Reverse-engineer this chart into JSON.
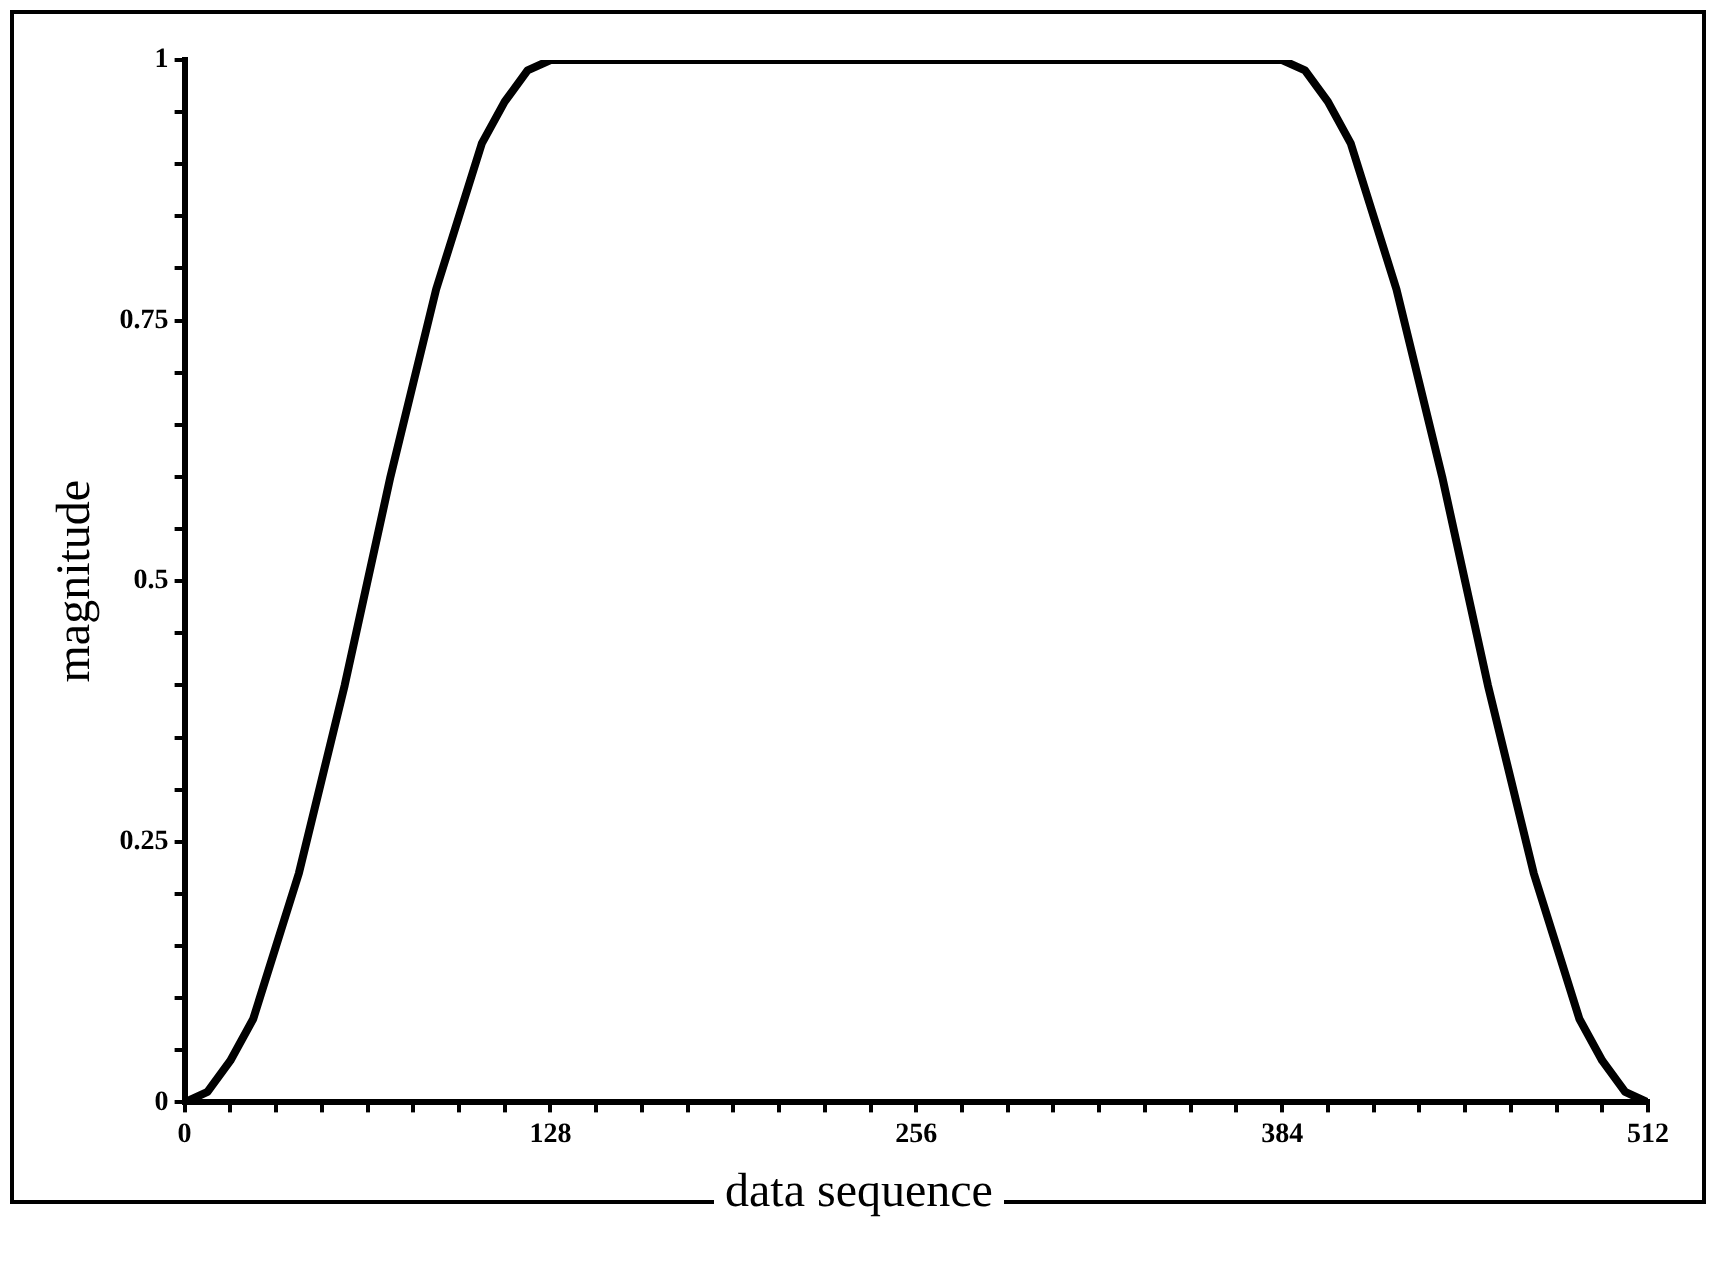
{
  "chart_data": {
    "type": "line",
    "xlabel": "data sequence",
    "ylabel": "magnitude",
    "color": "#000000",
    "x": [
      0,
      8,
      16,
      24,
      32,
      40,
      48,
      56,
      64,
      72,
      80,
      88,
      96,
      104,
      112,
      120,
      128,
      256,
      384,
      392,
      400,
      408,
      416,
      424,
      432,
      440,
      448,
      456,
      464,
      472,
      480,
      488,
      496,
      504,
      512
    ],
    "values": [
      0,
      0.01,
      0.04,
      0.08,
      0.15,
      0.22,
      0.31,
      0.4,
      0.5,
      0.6,
      0.69,
      0.78,
      0.85,
      0.92,
      0.96,
      0.99,
      1,
      1,
      1,
      0.99,
      0.96,
      0.92,
      0.85,
      0.78,
      0.69,
      0.6,
      0.5,
      0.4,
      0.31,
      0.22,
      0.15,
      0.08,
      0.04,
      0.01,
      0
    ],
    "xlim": [
      0,
      512
    ],
    "ylim": [
      0,
      1
    ],
    "xticks": [
      0,
      {
        "value": 16,
        "label": null
      },
      {
        "value": 32,
        "label": null
      },
      {
        "value": 48,
        "label": null
      },
      {
        "value": 64,
        "label": null
      },
      {
        "value": 80,
        "label": null
      },
      {
        "value": 96,
        "label": null
      },
      {
        "value": 112,
        "label": null
      },
      128,
      {
        "value": 144,
        "label": null
      },
      {
        "value": 160,
        "label": null
      },
      {
        "value": 176,
        "label": null
      },
      {
        "value": 192,
        "label": null
      },
      {
        "value": 208,
        "label": null
      },
      {
        "value": 224,
        "label": null
      },
      {
        "value": 240,
        "label": null
      },
      256,
      {
        "value": 272,
        "label": null
      },
      {
        "value": 288,
        "label": null
      },
      {
        "value": 304,
        "label": null
      },
      {
        "value": 320,
        "label": null
      },
      {
        "value": 336,
        "label": null
      },
      {
        "value": 352,
        "label": null
      },
      {
        "value": 368,
        "label": null
      },
      384,
      {
        "value": 400,
        "label": null
      },
      {
        "value": 416,
        "label": null
      },
      {
        "value": 432,
        "label": null
      },
      {
        "value": 448,
        "label": null
      },
      {
        "value": 464,
        "label": null
      },
      {
        "value": 480,
        "label": null
      },
      {
        "value": 496,
        "label": null
      },
      512
    ],
    "yticks": [
      0,
      {
        "value": 0.05,
        "label": null
      },
      {
        "value": 0.1,
        "label": null
      },
      {
        "value": 0.15,
        "label": null
      },
      {
        "value": 0.2,
        "label": null
      },
      0.25,
      {
        "value": 0.3,
        "label": null
      },
      {
        "value": 0.35,
        "label": null
      },
      {
        "value": 0.4,
        "label": null
      },
      {
        "value": 0.45,
        "label": null
      },
      0.5,
      {
        "value": 0.55,
        "label": null
      },
      {
        "value": 0.6,
        "label": null
      },
      {
        "value": 0.65,
        "label": null
      },
      {
        "value": 0.7,
        "label": null
      },
      0.75,
      {
        "value": 0.8,
        "label": null
      },
      {
        "value": 0.85,
        "label": null
      },
      {
        "value": 0.9,
        "label": null
      },
      {
        "value": 0.95,
        "label": null
      },
      1
    ],
    "grid": false,
    "legend": false,
    "marker": "none",
    "line_style": "solid"
  }
}
